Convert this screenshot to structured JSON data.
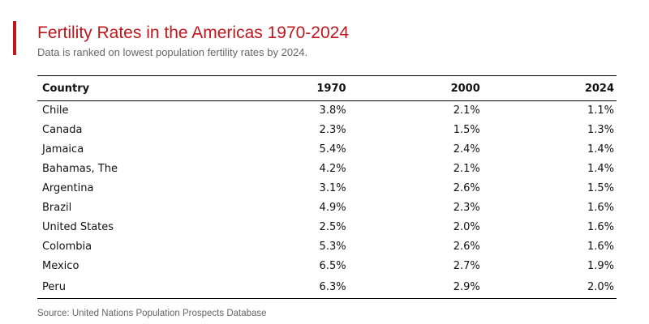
{
  "chart_data": {
    "type": "table",
    "title": "Fertility Rates in the Americas 1970-2024",
    "subtitle": "Data is ranked on lowest population fertility rates by 2024.",
    "columns": [
      "Country",
      "1970",
      "2000",
      "2024"
    ],
    "rows": [
      [
        "Chile",
        "3.8%",
        "2.1%",
        "1.1%"
      ],
      [
        "Canada",
        "2.3%",
        "1.5%",
        "1.3%"
      ],
      [
        "Jamaica",
        "5.4%",
        "2.4%",
        "1.4%"
      ],
      [
        "Bahamas, The",
        "4.2%",
        "2.1%",
        "1.4%"
      ],
      [
        "Argentina",
        "3.1%",
        "2.6%",
        "1.5%"
      ],
      [
        "Brazil",
        "4.9%",
        "2.3%",
        "1.6%"
      ],
      [
        "United States",
        "2.5%",
        "2.0%",
        "1.6%"
      ],
      [
        "Colombia",
        "5.3%",
        "2.6%",
        "1.6%"
      ],
      [
        "Mexico",
        "6.5%",
        "2.7%",
        "1.9%"
      ],
      [
        "Peru",
        "6.3%",
        "2.9%",
        "2.0%"
      ]
    ],
    "source": "Source: United Nations Population Prospects Database"
  },
  "colors": {
    "accent": "#c0161c",
    "muted_text": "#666666",
    "text": "#111111"
  }
}
